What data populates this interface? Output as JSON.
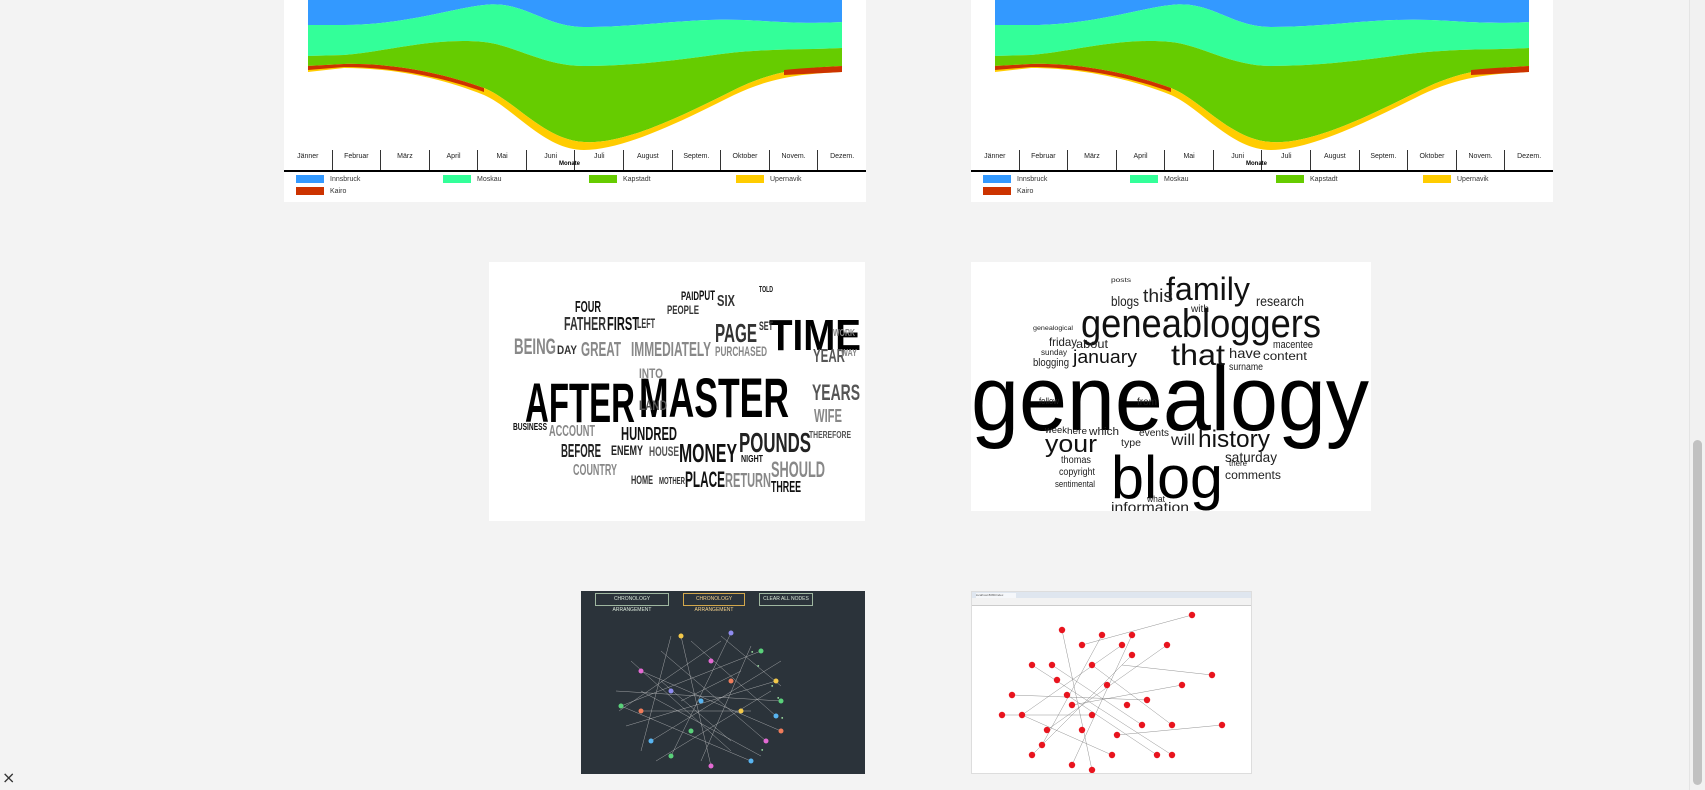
{
  "streamgraph": {
    "months": [
      "Jänner",
      "Februar",
      "März",
      "April",
      "Mai",
      "Juni",
      "Juli",
      "August",
      "Septem.",
      "Oktober",
      "Novem.",
      "Dezem."
    ],
    "axis_title": "Monate",
    "legend": [
      {
        "name": "Innsbruck",
        "color": "#3399ff"
      },
      {
        "name": "Moskau",
        "color": "#33ff99"
      },
      {
        "name": "Kapstadt",
        "color": "#66cc00"
      },
      {
        "name": "Upernavik",
        "color": "#ffcc00"
      },
      {
        "name": "Kairo",
        "color": "#cc3300"
      }
    ]
  },
  "wordcloud1": {
    "words": [
      "AFTER",
      "MASTER",
      "TIME",
      "POUNDS",
      "MONEY",
      "HUNDRED",
      "PAGE",
      "FATHER",
      "FIRST",
      "BEING",
      "YEARS",
      "PLACE",
      "RETURN",
      "SHOULD",
      "COUNTRY",
      "BEFORE",
      "ENEMY",
      "HOUSE",
      "ACCOUNT",
      "YEAR",
      "WIFE",
      "LAND",
      "GREAT",
      "IMMEDIATELY",
      "PURCHASED",
      "SIX",
      "FOUR",
      "PEOPLE",
      "THREE",
      "NIGHT",
      "BUSINESS",
      "HOME",
      "MOTHER",
      "LEFT",
      "DAY",
      "INTO",
      "PUT",
      "PAID",
      "TOLD",
      "SET",
      "WORK",
      "WAY",
      "THEREFORE"
    ]
  },
  "wordcloud2": {
    "words": [
      "genealogy",
      "blog",
      "geneabloggers",
      "family",
      "history",
      "that",
      "your",
      "january",
      "about",
      "blogs",
      "this",
      "have",
      "content",
      "research",
      "information",
      "comments",
      "saturday",
      "friday",
      "week",
      "will",
      "events",
      "from",
      "with",
      "sunday",
      "blogging",
      "follow",
      "thomas",
      "copyright",
      "sentimental",
      "macentee",
      "surname",
      "which",
      "what",
      "type",
      "there",
      "here",
      "posts",
      "genealogical"
    ]
  },
  "network1": {
    "buttons": [
      "CHRONOLOGY ARRANGEMENT",
      "CHRONOLOGY ARRANGEMENT",
      "CLEAR ALL NODES"
    ]
  },
  "network2": {
    "tab_label": "localhost:8080/index"
  }
}
